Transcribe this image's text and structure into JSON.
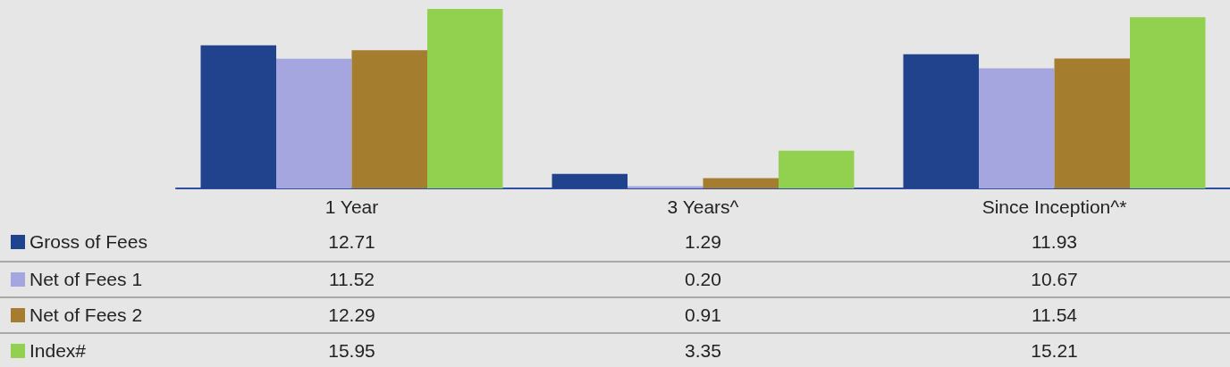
{
  "chart_data": {
    "type": "bar",
    "categories": [
      "1 Year",
      "3 Years^",
      "Since Inception^*"
    ],
    "legend": "bottom left",
    "series": [
      {
        "name": "Gross of Fees",
        "color": "#21428c",
        "values": [
          12.71,
          1.29,
          11.93
        ],
        "value_labels": [
          "12.71",
          "1.29",
          "11.93"
        ]
      },
      {
        "name": "Net of Fees 1",
        "color": "#a5a6e0",
        "values": [
          11.52,
          0.2,
          10.67
        ],
        "value_labels": [
          "11.52",
          "0.20",
          "10.67"
        ]
      },
      {
        "name": "Net of Fees 2",
        "color": "#a57d2e",
        "values": [
          12.29,
          0.91,
          11.54
        ],
        "value_labels": [
          "12.29",
          "0.91",
          "11.54"
        ]
      },
      {
        "name": "Index#",
        "color": "#92d050",
        "values": [
          15.95,
          3.35,
          15.21
        ],
        "value_labels": [
          "15.95",
          "3.35",
          "15.21"
        ]
      }
    ]
  }
}
